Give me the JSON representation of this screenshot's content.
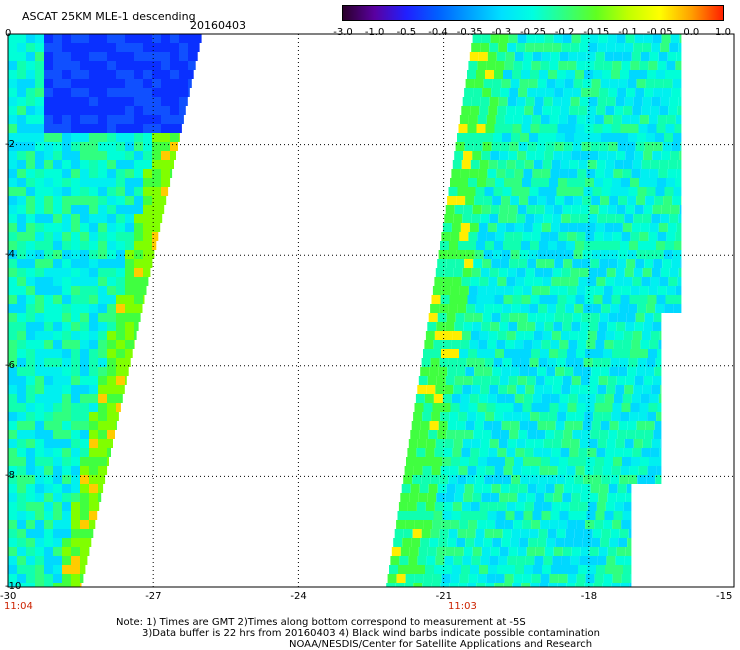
{
  "title": "ASCAT 25KM MLE-1 descending",
  "date": "20160403",
  "colorbar": {
    "labels": [
      "-3.0",
      "-1.0",
      "-0.5",
      "-0.4",
      "-0.35",
      "-0.3",
      "-0.25",
      "-0.2",
      "-0.15",
      "-0.1",
      "-0.05",
      "0.0",
      "1.0"
    ],
    "colors": [
      "#2a002a",
      "#5a00a0",
      "#2020ff",
      "#0060ff",
      "#00a0ff",
      "#00e0ff",
      "#00ffe0",
      "#30ff80",
      "#60ff20",
      "#c0ff00",
      "#ffff00",
      "#ffa000",
      "#ff2000"
    ]
  },
  "x_axis": {
    "ticks": [
      "-30",
      "-27",
      "-24",
      "-21",
      "-18",
      "-15"
    ],
    "min": -30,
    "max": -15
  },
  "y_axis": {
    "ticks": [
      "0",
      "-2",
      "-4",
      "-6",
      "-8",
      "-10"
    ],
    "min": -10,
    "max": 0
  },
  "time_labels": {
    "left": "11:04",
    "right": "11:03"
  },
  "notes": {
    "line1": "Note: 1) Times are GMT 2)Times along bottom correspond to measurement at -5S",
    "line2": "3)Data buffer is 22 hrs from 20160403 4) Black wind barbs indicate possible contamination",
    "line3": "NOAA/NESDIS/Center for Satellite Applications and Research"
  },
  "swaths": [
    {
      "name": "west-swath",
      "lon_min": -30,
      "top_lon_east": -26.0,
      "bottom_lon_east": -28.5
    },
    {
      "name": "east-swath",
      "lon_max": -16.5,
      "top_lon_west": -20.4,
      "bottom_lon_west": -22.2
    }
  ]
}
